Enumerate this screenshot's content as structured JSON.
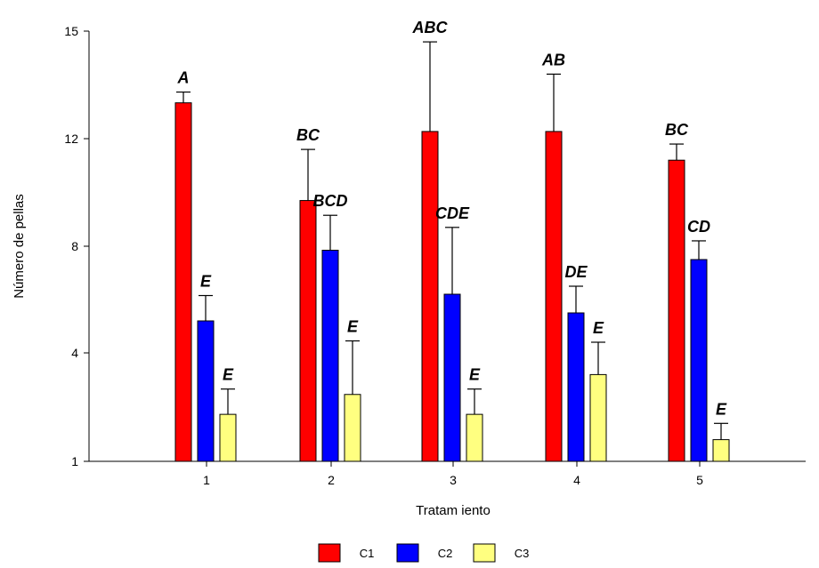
{
  "chart_data": {
    "type": "bar",
    "xlabel": "Tratam iento",
    "ylabel": "Número de pellas",
    "yticks": [
      1,
      4,
      8,
      12,
      15
    ],
    "ylim": [
      1,
      15
    ],
    "categories": [
      "1",
      "2",
      "3",
      "4",
      "5"
    ],
    "series": [
      {
        "name": "C1",
        "color": "#ff0000",
        "values": [
          13.0,
          9.7,
          12.2,
          12.2,
          11.2
        ],
        "errors": [
          0.3,
          1.9,
          2.5,
          1.6,
          0.6
        ],
        "labels": [
          "A",
          "BC",
          "ABC",
          "AB",
          "BC"
        ]
      },
      {
        "name": "C2",
        "color": "#0000ff",
        "values": [
          5.2,
          7.85,
          6.2,
          5.5,
          7.5
        ],
        "errors": [
          0.95,
          1.3,
          2.5,
          1.0,
          0.7
        ],
        "labels": [
          "E",
          "BCD",
          "CDE",
          "DE",
          "CD"
        ]
      },
      {
        "name": "C3",
        "color": "#ffff80",
        "values": [
          2.3,
          2.85,
          2.3,
          3.4,
          1.6
        ],
        "errors": [
          0.7,
          1.6,
          0.7,
          1.0,
          0.45
        ],
        "labels": [
          "E",
          "E",
          "E",
          "E",
          "E"
        ]
      }
    ],
    "legend_position": "bottom",
    "grid": false
  }
}
